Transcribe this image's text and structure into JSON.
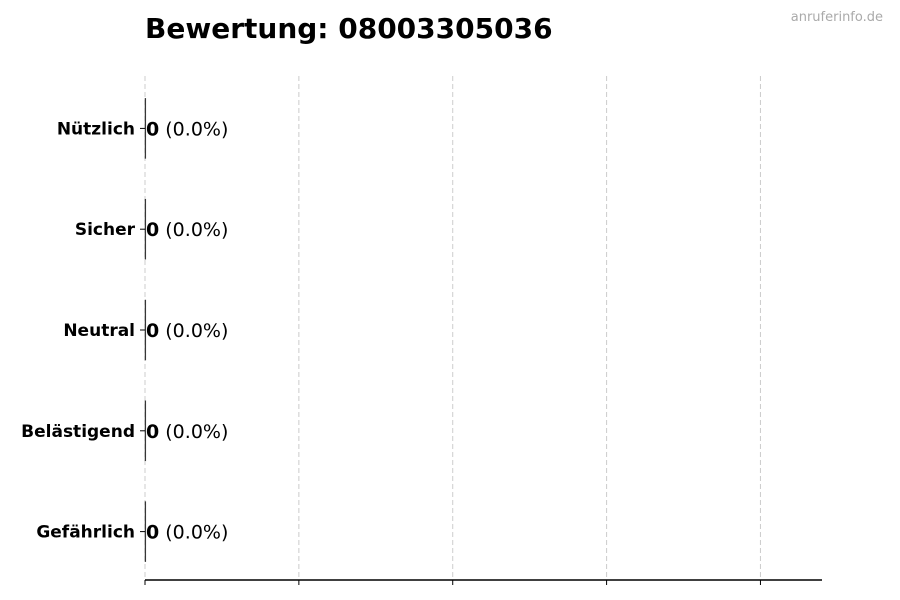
{
  "chart_data": {
    "type": "bar",
    "orientation": "horizontal",
    "title": "Bewertung: 08003305036",
    "watermark": "anruferinfo.de",
    "categories": [
      "Nützlich",
      "Sicher",
      "Neutral",
      "Belästigend",
      "Gefährlich"
    ],
    "values": [
      0,
      0,
      0,
      0,
      0
    ],
    "data_labels": [
      {
        "count": "0",
        "percent": "(0.0%)"
      },
      {
        "count": "0",
        "percent": "(0.0%)"
      },
      {
        "count": "0",
        "percent": "(0.0%)"
      },
      {
        "count": "0",
        "percent": "(0.0%)"
      },
      {
        "count": "0",
        "percent": "(0.0%)"
      }
    ],
    "xlabel": "",
    "ylabel": "",
    "xlim": [
      0,
      4.4
    ],
    "x_gridlines": [
      0,
      1,
      2,
      3,
      4
    ],
    "x_tick_labels_shown": false,
    "grid": "x, dashed",
    "bar_color": "#333333"
  }
}
